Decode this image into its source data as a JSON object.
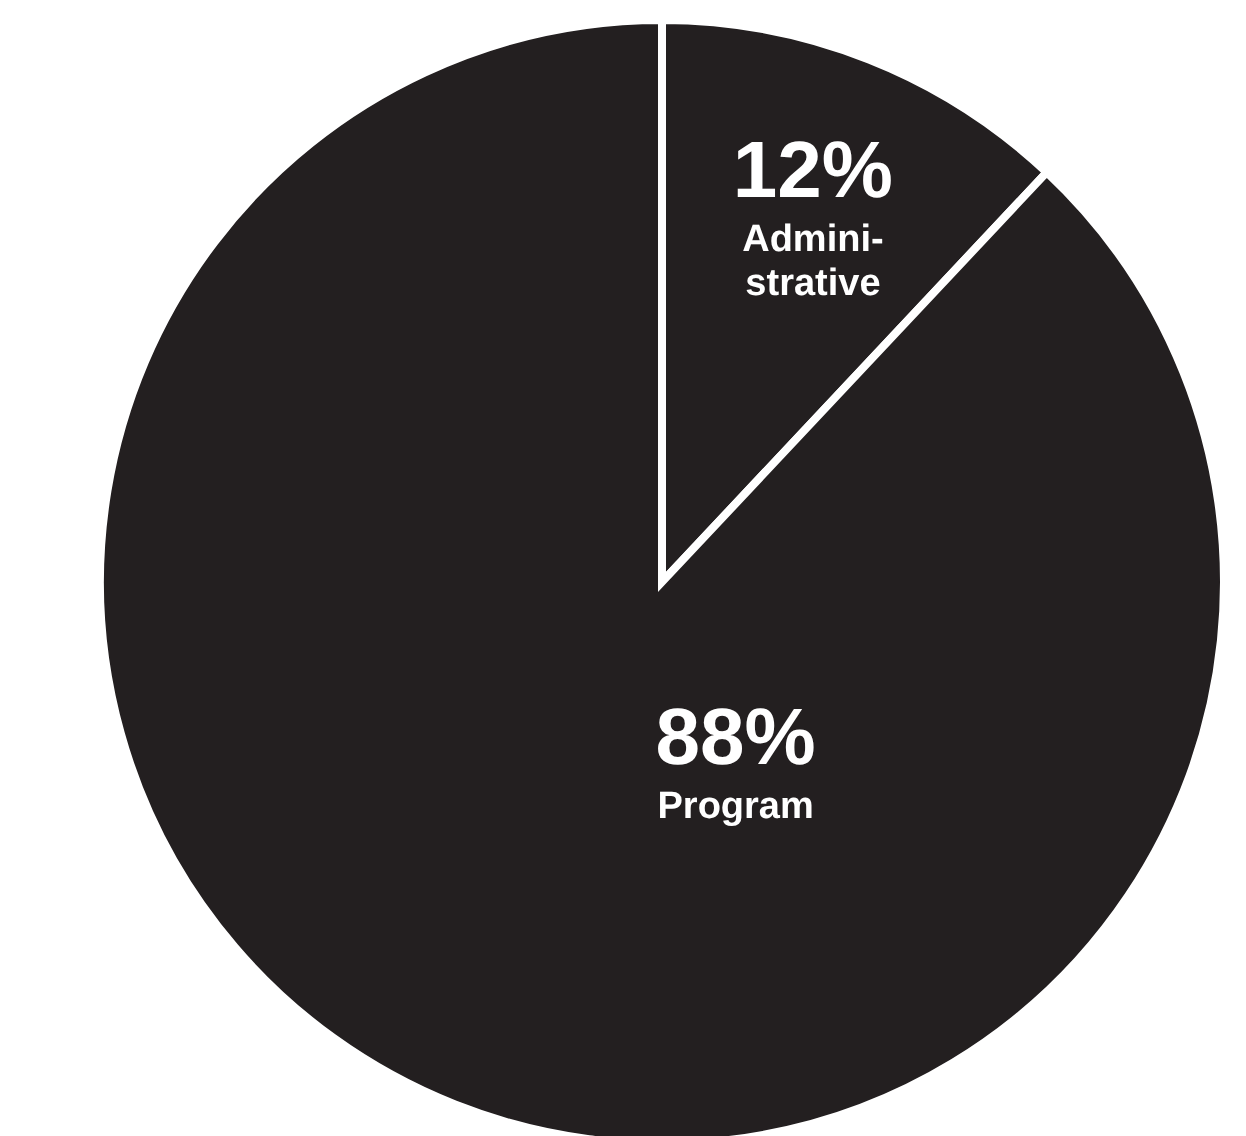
{
  "chart_data": {
    "type": "pie",
    "categories": [
      "Admini-\nstrative",
      "Program"
    ],
    "values": [
      12,
      88
    ],
    "colors": [
      "#231f20",
      "#231f20"
    ],
    "value_labels": [
      "12%",
      "88%"
    ]
  }
}
